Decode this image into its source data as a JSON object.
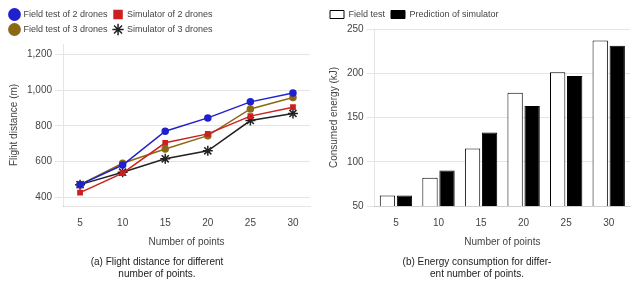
{
  "chart_data": [
    {
      "type": "line",
      "title": "(a) Flight distance for different\nnumber of points.",
      "xlabel": "Number of points",
      "ylabel": "Flight distance (m)",
      "x": [
        5,
        10,
        15,
        20,
        25,
        30
      ],
      "series": [
        {
          "name": "Field test of 2 drones",
          "color": "#2020cc",
          "marker": "circle",
          "values": [
            470,
            580,
            770,
            845,
            935,
            985
          ]
        },
        {
          "name": "Simulator of 2 drones",
          "color": "#cc2020",
          "marker": "square",
          "values": [
            425,
            535,
            705,
            755,
            855,
            905
          ]
        },
        {
          "name": "Field test of 3 drones",
          "color": "#8B6914",
          "marker": "circle",
          "values": [
            470,
            590,
            670,
            745,
            895,
            960
          ]
        },
        {
          "name": "Simulator of 3 drones",
          "color": "#222222",
          "marker": "star",
          "values": [
            470,
            540,
            615,
            660,
            830,
            870
          ]
        }
      ],
      "xlim": [
        3,
        32
      ],
      "xticks": [
        5,
        10,
        15,
        20,
        25,
        30
      ],
      "ylim": [
        350,
        1260
      ],
      "yticks": [
        400,
        600,
        800,
        {
          "value": 1000,
          "label": "1,000"
        },
        {
          "value": 1200,
          "label": "1,200"
        }
      ],
      "grid": true,
      "legend": "upper left"
    },
    {
      "type": "bar",
      "title": "(b) Energy consumption for differ-\nent number of points.",
      "xlabel": "Number of points",
      "ylabel": "Consumed energy (kJ)",
      "categories": [
        5,
        10,
        15,
        20,
        25,
        30
      ],
      "series": [
        {
          "name": "Field test",
          "color": "#ffffff",
          "values": [
            62,
            82,
            115,
            178,
            201,
            237
          ]
        },
        {
          "name": "Prediction of simulator",
          "color": "#000000",
          "values": [
            62,
            90,
            133,
            163,
            197,
            231
          ]
        }
      ],
      "ylim": [
        50,
        250
      ],
      "yticks": [
        50,
        100,
        150,
        200,
        250
      ],
      "grid": true,
      "legend": "upper left"
    }
  ]
}
